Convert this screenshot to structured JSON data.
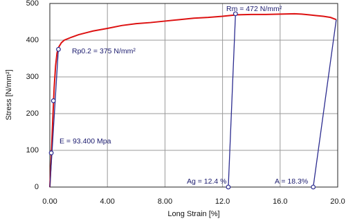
{
  "chart_data": {
    "type": "line",
    "xlabel": "Long Strain [%]",
    "ylabel": "Stress [N/mm²]",
    "xlim": [
      0,
      20
    ],
    "ylim": [
      0,
      500
    ],
    "xticks": [
      {
        "value": 0,
        "label": "0.00"
      },
      {
        "value": 4,
        "label": "4.00"
      },
      {
        "value": 8,
        "label": "8.00"
      },
      {
        "value": 12,
        "label": "12.0"
      },
      {
        "value": 16,
        "label": "16.0"
      },
      {
        "value": 20,
        "label": "20.0"
      }
    ],
    "yticks": [
      0,
      100,
      200,
      300,
      400,
      500
    ],
    "grid": true,
    "series": [
      {
        "color": "#dd1111",
        "x": [
          0,
          0.1,
          0.2,
          0.3,
          0.4,
          0.5,
          0.6,
          0.8,
          1.0,
          1.5,
          2,
          3,
          4,
          5,
          6,
          7,
          8,
          9,
          10,
          11,
          12,
          13,
          14,
          15,
          16,
          17,
          17.5,
          18,
          18.5,
          19,
          19.5,
          19.9
        ],
        "values": [
          0,
          80,
          180,
          270,
          330,
          365,
          380,
          393,
          400,
          408,
          415,
          425,
          432,
          440,
          445,
          448,
          452,
          456,
          460,
          462,
          465,
          469,
          470,
          470,
          471,
          472,
          471,
          469,
          467,
          465,
          462,
          456
        ]
      },
      {
        "color": "#2b2b8f",
        "x": [
          0,
          0.6
        ],
        "values": [
          0,
          380
        ]
      },
      {
        "color": "#2b2b8f",
        "x": [
          12.4,
          12.9
        ],
        "values": [
          0,
          472
        ]
      },
      {
        "color": "#2b2b8f",
        "x": [
          18.3,
          19.9
        ],
        "values": [
          0,
          456
        ]
      }
    ],
    "markers": {
      "color": "#2b2b8f",
      "x": [
        0.1,
        0.25,
        0.6,
        12.9,
        12.4,
        18.3
      ],
      "values": [
        93,
        235,
        375,
        472,
        0,
        0
      ]
    },
    "annotations": [
      "Rm =  472 N/mm²",
      "Rp0.2 =  375 N/mm²",
      "E =  93.400 Mpa",
      "Ag =  12.4 %",
      "A =  18.3%"
    ]
  }
}
